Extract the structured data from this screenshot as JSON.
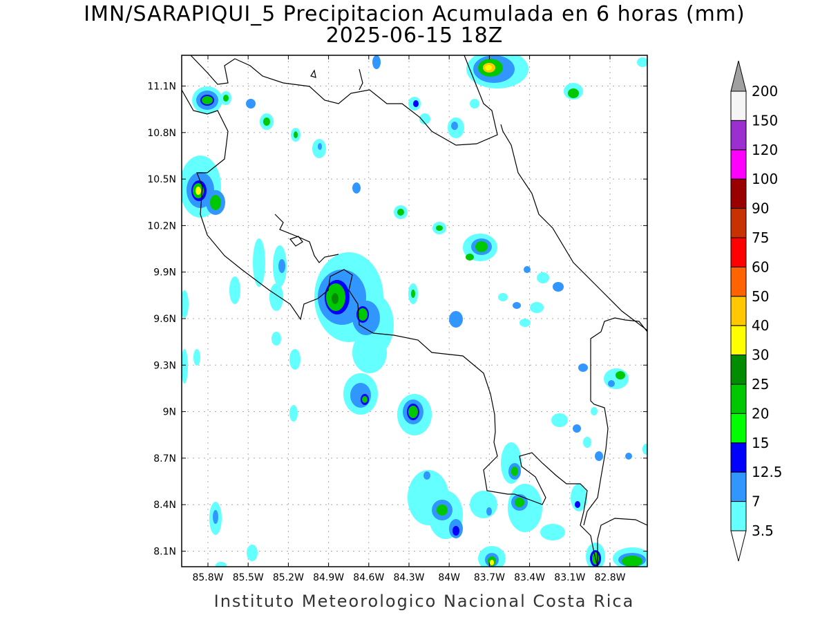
{
  "header": {
    "title_line1": "IMN/SARAPIQUI_5 Precipitacion Acumulada en 6 horas (mm)",
    "title_line2": "2025-06-15 18Z"
  },
  "footer": {
    "credit": "Instituto Meteorologico Nacional Costa Rica"
  },
  "map": {
    "lat_ticks": [
      "11.1N",
      "10.8N",
      "10.5N",
      "10.2N",
      "9.9N",
      "9.6N",
      "9.3N",
      "9N",
      "8.7N",
      "8.4N",
      "8.1N"
    ],
    "lon_ticks": [
      "85.8W",
      "85.5W",
      "85.2W",
      "84.9W",
      "84.6W",
      "84.3W",
      "84W",
      "83.7W",
      "83.4W",
      "83.1W",
      "82.8W"
    ],
    "grid": true
  },
  "colorbar": {
    "labels": [
      "200",
      "150",
      "120",
      "100",
      "90",
      "75",
      "60",
      "50",
      "40",
      "30",
      "25",
      "20",
      "15",
      "12.5",
      "7",
      "3.5"
    ],
    "colors": [
      "#f5f5f5",
      "#9b2fd0",
      "#ff00ff",
      "#9b0000",
      "#c83200",
      "#ff0000",
      "#ff6400",
      "#ffc800",
      "#ffff00",
      "#008c00",
      "#00c800",
      "#00ff00",
      "#0000ff",
      "#3296ff",
      "#64ffff"
    ],
    "top_arrow_color": "#a0a0a0",
    "bottom_arrow_color": "#ffffff"
  }
}
